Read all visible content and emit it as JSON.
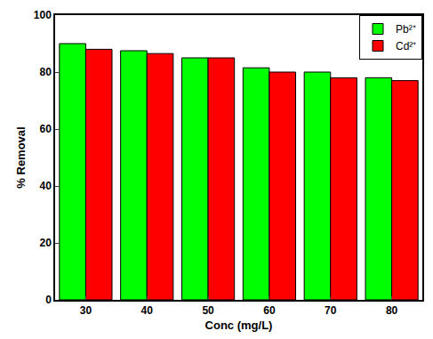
{
  "chart_data": {
    "type": "bar",
    "x_label": "Conc (mg/L)",
    "y_label": "% Removal",
    "categories": [
      "30",
      "40",
      "50",
      "60",
      "70",
      "80"
    ],
    "series": [
      {
        "name": "Pb²⁺",
        "color": "#00ff00",
        "values": [
          90,
          87.5,
          85,
          81.5,
          80,
          78
        ]
      },
      {
        "name": "Cd²⁺",
        "color": "#ff0000",
        "values": [
          88,
          86.5,
          85,
          80,
          78,
          77
        ]
      }
    ],
    "ylim": [
      0,
      100
    ],
    "yticks": [
      0,
      20,
      40,
      60,
      80,
      100
    ],
    "grid": false,
    "legend": "upper right"
  }
}
